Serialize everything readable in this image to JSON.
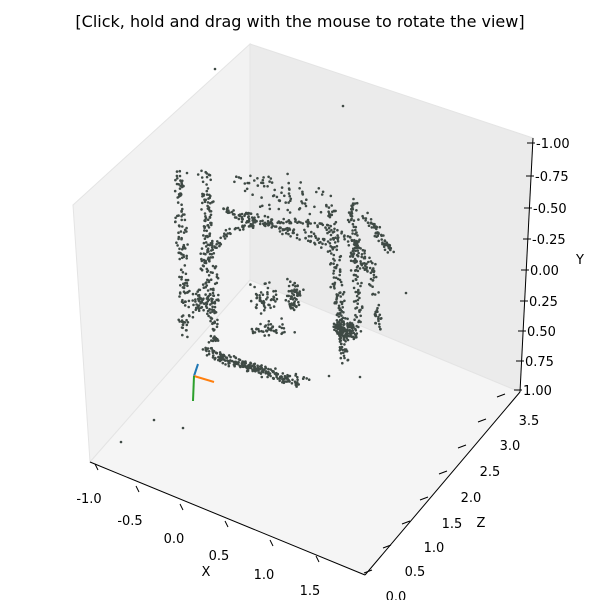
{
  "window": {
    "instruction": "[Click, hold and drag with the mouse to rotate the view]"
  },
  "chart_data": {
    "type": "scatter3d",
    "title": "",
    "xlabel": "X",
    "ylabel": "Y",
    "zlabel": "Z",
    "xlim": [
      -1.0,
      1.75
    ],
    "ylim": [
      -1.0,
      1.0
    ],
    "zlim": [
      0.0,
      3.6
    ],
    "y_axis_inverted": true,
    "xticks": [
      "-1.0",
      "-0.5",
      "0.0",
      "0.5",
      "1.0",
      "1.5"
    ],
    "yticks": [
      "-1.00",
      "-0.75",
      "-0.50",
      "-0.25",
      "0.00",
      "0.25",
      "0.50",
      "0.75",
      "1.00"
    ],
    "zticks": [
      "0.0",
      "0.5",
      "1.0",
      "1.5",
      "2.0",
      "2.5",
      "3.0",
      "3.5"
    ],
    "point_color": "#3f4a45",
    "point_count_estimate": 1500,
    "camera_axes_colors": [
      "#1f77b4",
      "#ff7f0e",
      "#2ca02c"
    ],
    "grid": false
  }
}
